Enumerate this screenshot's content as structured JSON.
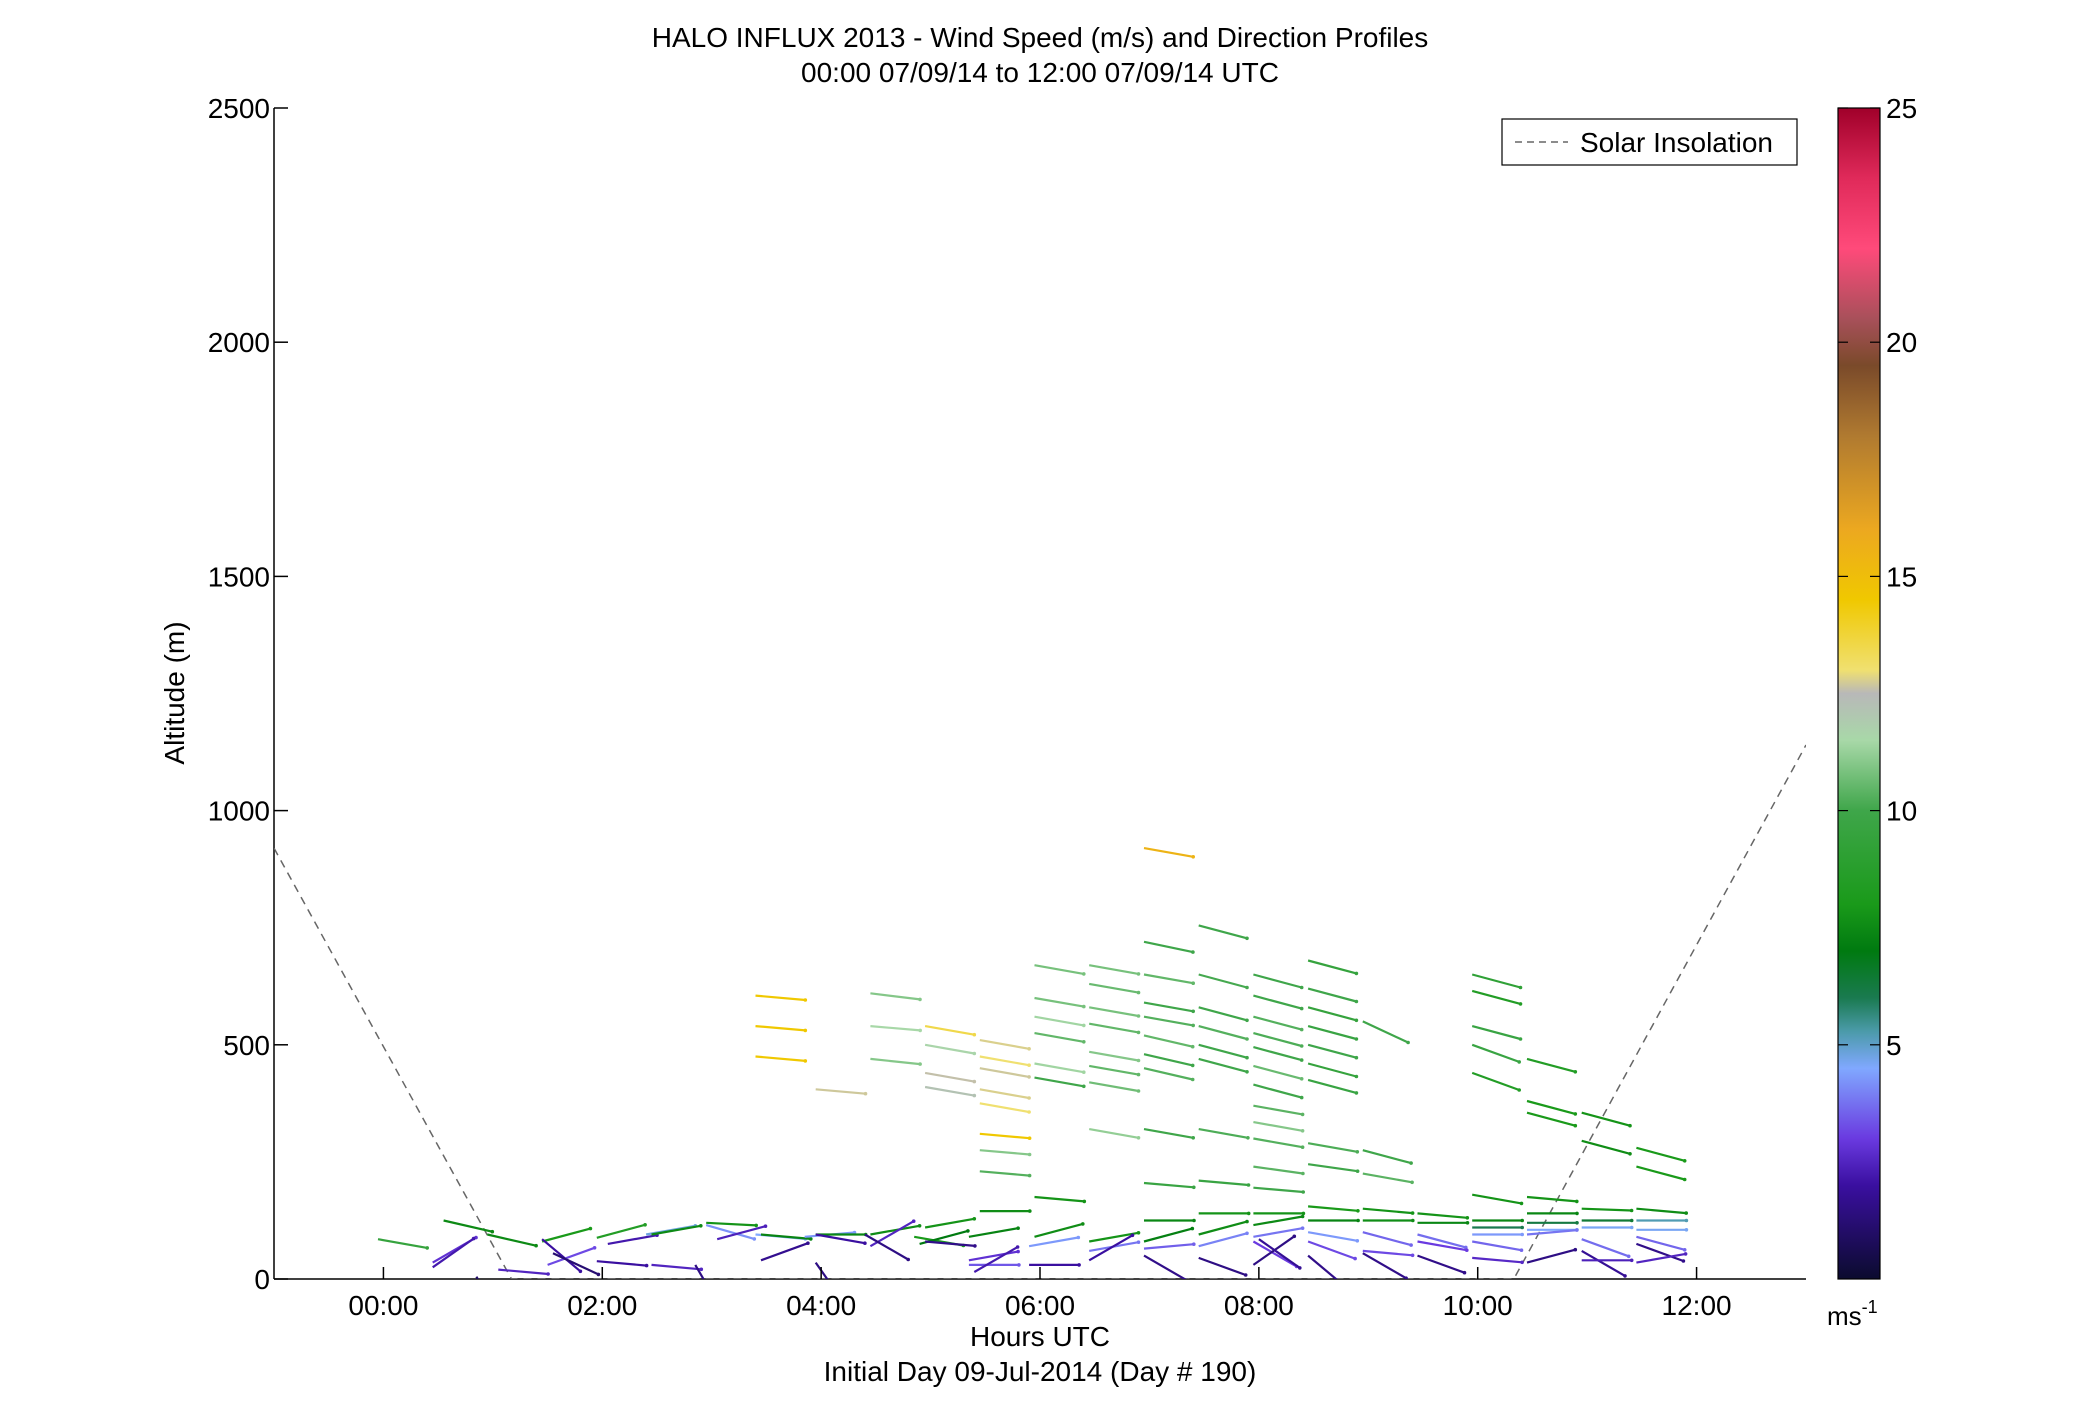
{
  "chart_data": {
    "type": "wind-barb-profile",
    "title": "HALO INFLUX 2013 - Wind Speed (m/s) and Direction Profiles",
    "subtitle": "00:00 07/09/14 to 12:00 07/09/14  UTC",
    "xlabel": "Hours UTC",
    "xlabel2": "Initial Day 09-Jul-2014 (Day # 190)",
    "ylabel": "Altitude (m)",
    "xlim": [
      -1.0,
      13.0
    ],
    "ylim": [
      0,
      2500
    ],
    "x_ticks": [
      0,
      2,
      4,
      6,
      8,
      10,
      12
    ],
    "x_tick_labels": [
      "00:00",
      "02:00",
      "04:00",
      "06:00",
      "08:00",
      "10:00",
      "12:00"
    ],
    "y_ticks": [
      0,
      500,
      1000,
      1500,
      2000,
      2500
    ],
    "y_tick_labels": [
      "0",
      "500",
      "1000",
      "1500",
      "2000",
      "2500"
    ],
    "legend": {
      "label": "Solar Insolation",
      "placement": "top-right",
      "style": "dashed",
      "color": "#666666"
    },
    "colorbar": {
      "min": 0,
      "max": 25,
      "ticks": [
        5,
        10,
        15,
        20,
        25
      ],
      "tick_labels": [
        "5",
        "10",
        "15",
        "20",
        "25"
      ],
      "unit": "ms",
      "unit_exp": "-1",
      "stops": [
        [
          0,
          "#0b0b2e"
        ],
        [
          2,
          "#3a0fa0"
        ],
        [
          3,
          "#6a3ae0"
        ],
        [
          4.5,
          "#80a8ff"
        ],
        [
          5.3,
          "#4a9aa8"
        ],
        [
          6,
          "#1a7a50"
        ],
        [
          7,
          "#007a10"
        ],
        [
          8,
          "#1a9a1a"
        ],
        [
          10,
          "#3fa64a"
        ],
        [
          11.5,
          "#a8d8a8"
        ],
        [
          12.5,
          "#b8b8b8"
        ],
        [
          13,
          "#f0e070"
        ],
        [
          14.5,
          "#f0c800"
        ],
        [
          16,
          "#eca820"
        ],
        [
          18,
          "#b07a30"
        ],
        [
          19.5,
          "#7a4a2a"
        ],
        [
          20.5,
          "#a8505a"
        ],
        [
          22,
          "#ff4a7a"
        ],
        [
          23.5,
          "#e02a5a"
        ],
        [
          25,
          "#a0002a"
        ]
      ]
    },
    "solar_insolation": [
      [
        -1.0,
        920
      ],
      [
        1.17,
        0
      ],
      [
        10.33,
        0
      ],
      [
        13.0,
        1140
      ]
    ],
    "barbs": [
      [
        -0.05,
        85,
        9.5,
        100
      ],
      [
        0.55,
        125,
        7.5,
        103
      ],
      [
        0.45,
        35,
        2.8,
        60
      ],
      [
        0.45,
        25,
        2.2,
        55
      ],
      [
        0.85,
        5,
        1.0,
        150
      ],
      [
        0.95,
        95,
        7.5,
        103
      ],
      [
        1.05,
        20,
        2.5,
        95
      ],
      [
        1.45,
        80,
        8.0,
        75
      ],
      [
        1.45,
        85,
        2.0,
        130
      ],
      [
        1.5,
        30,
        3.2,
        70
      ],
      [
        1.55,
        55,
        1.2,
        115
      ],
      [
        1.95,
        88,
        8.5,
        75
      ],
      [
        1.95,
        38,
        2.0,
        95
      ],
      [
        2.05,
        75,
        2.2,
        80
      ],
      [
        2.4,
        95,
        4.8,
        80
      ],
      [
        2.45,
        95,
        7.5,
        80
      ],
      [
        2.45,
        30,
        2.5,
        95
      ],
      [
        2.85,
        30,
        1.5,
        150
      ],
      [
        2.95,
        120,
        7.8,
        93
      ],
      [
        2.95,
        115,
        4.2,
        106
      ],
      [
        3.05,
        85,
        2.4,
        75
      ],
      [
        3.4,
        95,
        4.5,
        95
      ],
      [
        3.45,
        95,
        7.3,
        95
      ],
      [
        3.45,
        40,
        1.7,
        70
      ],
      [
        3.85,
        90,
        4.3,
        85
      ],
      [
        3.95,
        95,
        7.4,
        90
      ],
      [
        3.95,
        35,
        1.5,
        145
      ],
      [
        3.95,
        95,
        2.0,
        100
      ],
      [
        3.4,
        605,
        14.5,
        95
      ],
      [
        3.4,
        540,
        14.5,
        95
      ],
      [
        3.4,
        475,
        14.5,
        95
      ],
      [
        3.95,
        405,
        12.7,
        95
      ],
      [
        4.45,
        95,
        7.6,
        80
      ],
      [
        4.45,
        70,
        2.5,
        60
      ],
      [
        4.4,
        95,
        1.5,
        120
      ],
      [
        4.45,
        610,
        11.0,
        97
      ],
      [
        4.45,
        540,
        11.5,
        95
      ],
      [
        4.45,
        470,
        11.0,
        96
      ],
      [
        4.85,
        90,
        8.0,
        100
      ],
      [
        4.9,
        75,
        7.0,
        75
      ],
      [
        4.95,
        80,
        1.6,
        95
      ],
      [
        4.95,
        110,
        7.8,
        80
      ],
      [
        4.95,
        540,
        13.5,
        100
      ],
      [
        4.95,
        500,
        11.6,
        100
      ],
      [
        4.95,
        440,
        12.6,
        100
      ],
      [
        4.95,
        410,
        12.2,
        100
      ],
      [
        5.35,
        90,
        7.3,
        80
      ],
      [
        5.35,
        40,
        2.8,
        80
      ],
      [
        5.35,
        30,
        3.4,
        90
      ],
      [
        5.4,
        15,
        2.2,
        60
      ],
      [
        5.45,
        510,
        12.8,
        100
      ],
      [
        5.45,
        475,
        13.0,
        100
      ],
      [
        5.45,
        450,
        12.7,
        100
      ],
      [
        5.45,
        405,
        12.8,
        100
      ],
      [
        5.45,
        375,
        13.0,
        100
      ],
      [
        5.45,
        310,
        14.5,
        95
      ],
      [
        5.45,
        275,
        11.0,
        95
      ],
      [
        5.45,
        230,
        10.3,
        95
      ],
      [
        5.45,
        145,
        7.6,
        90
      ],
      [
        5.95,
        90,
        7.6,
        75
      ],
      [
        5.9,
        70,
        4.3,
        80
      ],
      [
        5.9,
        30,
        2.0,
        90
      ],
      [
        5.95,
        175,
        7.8,
        95
      ],
      [
        5.95,
        670,
        10.8,
        100
      ],
      [
        5.95,
        600,
        10.8,
        100
      ],
      [
        5.95,
        560,
        11.4,
        100
      ],
      [
        5.95,
        525,
        10.5,
        100
      ],
      [
        5.95,
        460,
        11.4,
        100
      ],
      [
        5.95,
        430,
        10.0,
        100
      ],
      [
        6.45,
        80,
        7.8,
        80
      ],
      [
        6.45,
        60,
        3.8,
        80
      ],
      [
        6.45,
        40,
        2.0,
        60
      ],
      [
        6.45,
        670,
        10.8,
        100
      ],
      [
        6.45,
        630,
        10.6,
        100
      ],
      [
        6.45,
        580,
        10.8,
        100
      ],
      [
        6.45,
        545,
        10.5,
        100
      ],
      [
        6.45,
        485,
        11.0,
        100
      ],
      [
        6.45,
        455,
        10.5,
        100
      ],
      [
        6.45,
        420,
        10.7,
        100
      ],
      [
        6.45,
        320,
        11.2,
        100
      ],
      [
        6.95,
        920,
        15.5,
        100
      ],
      [
        6.95,
        720,
        10.0,
        102
      ],
      [
        6.95,
        650,
        10.5,
        100
      ],
      [
        6.95,
        590,
        10.0,
        100
      ],
      [
        6.95,
        560,
        10.3,
        100
      ],
      [
        6.95,
        520,
        10.5,
        103
      ],
      [
        6.95,
        480,
        10.0,
        103
      ],
      [
        6.95,
        450,
        10.3,
        103
      ],
      [
        6.95,
        320,
        10.0,
        100
      ],
      [
        6.95,
        205,
        9.7,
        95
      ],
      [
        6.95,
        125,
        7.4,
        90
      ],
      [
        6.95,
        80,
        7.2,
        75
      ],
      [
        6.95,
        65,
        3.5,
        85
      ],
      [
        6.95,
        50,
        1.6,
        120
      ],
      [
        7.45,
        755,
        10.0,
        105
      ],
      [
        7.45,
        650,
        10.1,
        105
      ],
      [
        7.45,
        580,
        10.0,
        105
      ],
      [
        7.45,
        540,
        10.3,
        105
      ],
      [
        7.45,
        500,
        10.0,
        105
      ],
      [
        7.45,
        470,
        10.0,
        105
      ],
      [
        7.45,
        320,
        10.2,
        100
      ],
      [
        7.45,
        210,
        9.7,
        95
      ],
      [
        7.45,
        140,
        7.8,
        90
      ],
      [
        7.45,
        95,
        7.6,
        75
      ],
      [
        7.45,
        70,
        4.0,
        75
      ],
      [
        7.45,
        45,
        1.5,
        110
      ],
      [
        7.95,
        650,
        10.0,
        105
      ],
      [
        7.95,
        605,
        10.0,
        105
      ],
      [
        7.95,
        560,
        10.3,
        105
      ],
      [
        7.95,
        525,
        10.2,
        105
      ],
      [
        7.95,
        495,
        10.0,
        105
      ],
      [
        7.95,
        455,
        10.6,
        105
      ],
      [
        7.95,
        415,
        10.0,
        105
      ],
      [
        7.95,
        370,
        10.4,
        100
      ],
      [
        7.95,
        335,
        11.0,
        100
      ],
      [
        7.95,
        300,
        10.3,
        100
      ],
      [
        7.95,
        240,
        10.4,
        98
      ],
      [
        7.95,
        195,
        10.0,
        95
      ],
      [
        7.95,
        140,
        7.8,
        90
      ],
      [
        7.95,
        115,
        7.5,
        80
      ],
      [
        7.95,
        90,
        3.8,
        80
      ],
      [
        7.95,
        80,
        3.0,
        120
      ],
      [
        7.95,
        30,
        1.5,
        55
      ],
      [
        8.0,
        85,
        1.8,
        125
      ],
      [
        8.45,
        680,
        9.5,
        105
      ],
      [
        8.45,
        620,
        10.0,
        105
      ],
      [
        8.45,
        580,
        9.5,
        105
      ],
      [
        8.45,
        540,
        9.7,
        105
      ],
      [
        8.45,
        500,
        10.0,
        105
      ],
      [
        8.45,
        460,
        9.5,
        105
      ],
      [
        8.45,
        425,
        9.7,
        105
      ],
      [
        8.45,
        290,
        10.2,
        100
      ],
      [
        8.45,
        245,
        10.0,
        98
      ],
      [
        8.45,
        155,
        8.0,
        95
      ],
      [
        8.45,
        125,
        7.3,
        90
      ],
      [
        8.45,
        100,
        4.3,
        100
      ],
      [
        8.45,
        80,
        3.2,
        110
      ],
      [
        8.45,
        50,
        1.6,
        130
      ],
      [
        8.95,
        550,
        10.0,
        115
      ],
      [
        8.95,
        275,
        10.0,
        105
      ],
      [
        8.95,
        225,
        10.4,
        100
      ],
      [
        8.95,
        150,
        7.8,
        95
      ],
      [
        8.95,
        125,
        7.6,
        90
      ],
      [
        8.95,
        100,
        3.6,
        105
      ],
      [
        8.95,
        60,
        3.2,
        95
      ],
      [
        8.95,
        55,
        1.6,
        120
      ],
      [
        9.45,
        140,
        7.8,
        95
      ],
      [
        9.45,
        120,
        7.4,
        90
      ],
      [
        9.45,
        95,
        3.7,
        105
      ],
      [
        9.45,
        80,
        3.0,
        100
      ],
      [
        9.45,
        50,
        1.6,
        110
      ],
      [
        9.95,
        650,
        9.2,
        105
      ],
      [
        9.95,
        615,
        8.5,
        105
      ],
      [
        9.95,
        540,
        9.7,
        105
      ],
      [
        9.95,
        500,
        9.7,
        110
      ],
      [
        9.95,
        440,
        8.5,
        110
      ],
      [
        9.95,
        180,
        7.8,
        100
      ],
      [
        9.95,
        125,
        7.4,
        90
      ],
      [
        9.95,
        110,
        6.0,
        90
      ],
      [
        9.95,
        95,
        4.3,
        90
      ],
      [
        9.95,
        80,
        3.6,
        100
      ],
      [
        9.95,
        45,
        2.6,
        95
      ],
      [
        10.45,
        470,
        8.5,
        105
      ],
      [
        10.45,
        380,
        8.0,
        105
      ],
      [
        10.45,
        355,
        8.0,
        105
      ],
      [
        10.45,
        175,
        7.8,
        95
      ],
      [
        10.45,
        140,
        7.4,
        90
      ],
      [
        10.45,
        120,
        6.2,
        90
      ],
      [
        10.45,
        105,
        4.5,
        90
      ],
      [
        10.45,
        95,
        3.8,
        85
      ],
      [
        10.45,
        35,
        1.5,
        75
      ],
      [
        10.95,
        355,
        7.8,
        105
      ],
      [
        10.95,
        295,
        7.6,
        105
      ],
      [
        10.95,
        150,
        7.8,
        92
      ],
      [
        10.95,
        125,
        6.4,
        90
      ],
      [
        10.95,
        110,
        4.6,
        90
      ],
      [
        10.95,
        85,
        3.7,
        110
      ],
      [
        10.95,
        60,
        1.8,
        120
      ],
      [
        10.95,
        40,
        2.4,
        90
      ],
      [
        11.45,
        280,
        8.0,
        105
      ],
      [
        11.45,
        240,
        8.0,
        105
      ],
      [
        11.45,
        150,
        7.6,
        95
      ],
      [
        11.45,
        125,
        5.2,
        90
      ],
      [
        11.45,
        105,
        4.6,
        90
      ],
      [
        11.45,
        90,
        3.6,
        105
      ],
      [
        11.45,
        75,
        1.6,
        110
      ],
      [
        11.45,
        35,
        2.5,
        80
      ]
    ]
  }
}
